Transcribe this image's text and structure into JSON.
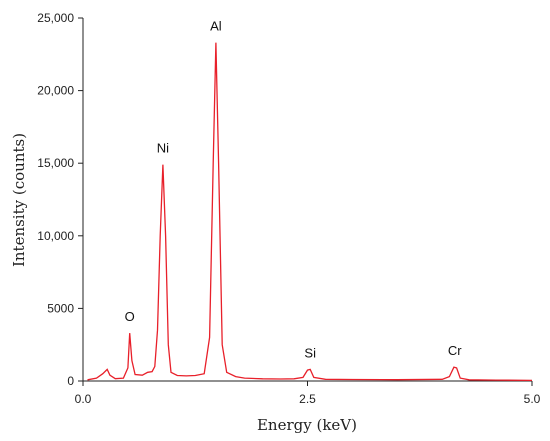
{
  "chart_data": {
    "type": "line",
    "title": "",
    "xlabel": "Energy (keV)",
    "ylabel": "Intensity (counts)",
    "xlim": [
      0,
      5
    ],
    "ylim": [
      0,
      25000
    ],
    "x_ticks": [
      0,
      2.5,
      5
    ],
    "x_tick_labels": [
      "0.0",
      "2.5",
      "5.0"
    ],
    "y_ticks": [
      0,
      5000,
      10000,
      15000,
      20000,
      25000
    ],
    "y_tick_labels": [
      "0",
      "5000",
      "10,000",
      "15,000",
      "20,000",
      "25,000"
    ],
    "grid": false,
    "series": [
      {
        "color": "#e8202a",
        "points": [
          [
            0.05,
            80
          ],
          [
            0.15,
            200
          ],
          [
            0.22,
            500
          ],
          [
            0.27,
            800
          ],
          [
            0.3,
            400
          ],
          [
            0.36,
            160
          ],
          [
            0.45,
            200
          ],
          [
            0.5,
            900
          ],
          [
            0.52,
            3300
          ],
          [
            0.545,
            1400
          ],
          [
            0.58,
            450
          ],
          [
            0.66,
            400
          ],
          [
            0.72,
            600
          ],
          [
            0.77,
            650
          ],
          [
            0.8,
            1000
          ],
          [
            0.83,
            3500
          ],
          [
            0.86,
            10000
          ],
          [
            0.89,
            14900
          ],
          [
            0.92,
            10000
          ],
          [
            0.95,
            2500
          ],
          [
            0.98,
            600
          ],
          [
            1.05,
            380
          ],
          [
            1.15,
            350
          ],
          [
            1.25,
            380
          ],
          [
            1.35,
            500
          ],
          [
            1.41,
            3000
          ],
          [
            1.45,
            15000
          ],
          [
            1.48,
            23300
          ],
          [
            1.51,
            15000
          ],
          [
            1.55,
            2500
          ],
          [
            1.6,
            600
          ],
          [
            1.7,
            300
          ],
          [
            1.8,
            200
          ],
          [
            2.0,
            150
          ],
          [
            2.2,
            140
          ],
          [
            2.35,
            150
          ],
          [
            2.45,
            250
          ],
          [
            2.5,
            750
          ],
          [
            2.53,
            800
          ],
          [
            2.57,
            250
          ],
          [
            2.7,
            120
          ],
          [
            3.0,
            100
          ],
          [
            3.5,
            90
          ],
          [
            4.0,
            120
          ],
          [
            4.08,
            300
          ],
          [
            4.13,
            950
          ],
          [
            4.16,
            900
          ],
          [
            4.2,
            200
          ],
          [
            4.3,
            80
          ],
          [
            4.6,
            60
          ],
          [
            5.0,
            40
          ]
        ]
      }
    ],
    "annotations": [
      {
        "text": "O",
        "x": 0.52,
        "y": 3300
      },
      {
        "text": "Ni",
        "x": 0.89,
        "y": 14900
      },
      {
        "text": "Al",
        "x": 1.48,
        "y": 23300
      },
      {
        "text": "Si",
        "x": 2.53,
        "y": 800
      },
      {
        "text": "Cr",
        "x": 4.14,
        "y": 950
      }
    ]
  }
}
